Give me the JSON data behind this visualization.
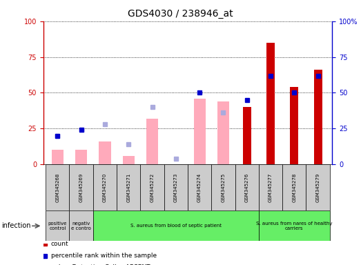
{
  "title": "GDS4030 / 238946_at",
  "samples": [
    "GSM345268",
    "GSM345269",
    "GSM345270",
    "GSM345271",
    "GSM345272",
    "GSM345273",
    "GSM345274",
    "GSM345275",
    "GSM345276",
    "GSM345277",
    "GSM345278",
    "GSM345279"
  ],
  "count_red": [
    0,
    0,
    0,
    0,
    0,
    0,
    0,
    0,
    40,
    85,
    54,
    66
  ],
  "rank_blue": [
    20,
    24,
    0,
    0,
    0,
    0,
    50,
    0,
    45,
    62,
    50,
    62
  ],
  "value_pink": [
    10,
    10,
    16,
    6,
    32,
    0,
    46,
    44,
    0,
    0,
    0,
    0
  ],
  "rank_lightblue": [
    20,
    24,
    28,
    14,
    40,
    4,
    0,
    36,
    0,
    0,
    0,
    0
  ],
  "groups": [
    {
      "label": "positive\ncontrol",
      "start": 0,
      "end": 1,
      "color": "#cccccc"
    },
    {
      "label": "negativ\ne contro",
      "start": 1,
      "end": 2,
      "color": "#cccccc"
    },
    {
      "label": "S. aureus from blood of septic patient",
      "start": 2,
      "end": 9,
      "color": "#66ee66"
    },
    {
      "label": "S. aureus from nares of healthy\ncarriers",
      "start": 9,
      "end": 12,
      "color": "#66ee66"
    }
  ],
  "ylim_left": [
    0,
    100
  ],
  "ylim_right": [
    0,
    100
  ],
  "left_ticks": [
    0,
    25,
    50,
    75,
    100
  ],
  "right_tick_labels": [
    "0",
    "25",
    "50",
    "75",
    "100%"
  ],
  "left_color": "#cc0000",
  "right_color": "#0000cc",
  "bg_color": "#ffffff",
  "bar_width": 0.5,
  "pink_color": "#ffaabb",
  "lightblue_color": "#aaaadd"
}
